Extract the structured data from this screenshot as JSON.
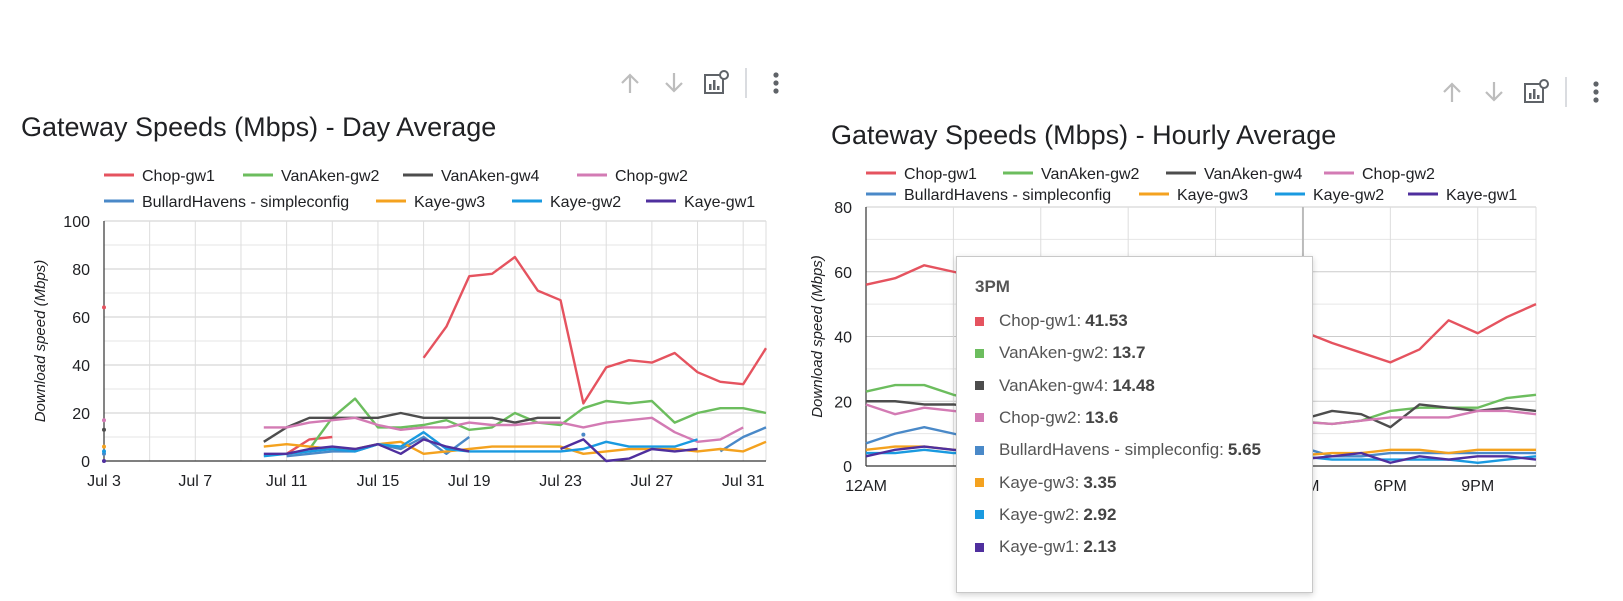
{
  "left_panel": {
    "title": "Gateway Speeds (Mbps) - Day Average",
    "toolbar": {
      "move_up_icon": "arrow-up-icon",
      "move_down_icon": "arrow-down-icon",
      "edit_chart_icon": "chart-settings-icon",
      "more_icon": "more-vert-icon"
    }
  },
  "right_panel": {
    "title": "Gateway Speeds (Mbps) - Hourly Average",
    "toolbar": {
      "move_up_icon": "arrow-up-icon",
      "move_down_icon": "arrow-down-icon",
      "edit_chart_icon": "chart-settings-icon",
      "more_icon": "more-vert-icon"
    },
    "tooltip": {
      "title": "3PM",
      "rows": [
        {
          "label": "Chop-gw1:",
          "value": "41.53",
          "color": "#e5535f"
        },
        {
          "label": "VanAken-gw2:",
          "value": "13.7",
          "color": "#6cbd5e"
        },
        {
          "label": "VanAken-gw4:",
          "value": "14.48",
          "color": "#4d4d4d"
        },
        {
          "label": "Chop-gw2:",
          "value": "13.6",
          "color": "#d37bb4"
        },
        {
          "label": "BullardHavens - simpleconfig:",
          "value": "5.65",
          "color": "#4a89c8"
        },
        {
          "label": "Kaye-gw3:",
          "value": "3.35",
          "color": "#f4a21f"
        },
        {
          "label": "Kaye-gw2:",
          "value": "2.92",
          "color": "#1a9ae0"
        },
        {
          "label": "Kaye-gw1:",
          "value": "2.13",
          "color": "#4f2f9e"
        }
      ]
    }
  },
  "chart_data": [
    {
      "type": "line",
      "title": "Gateway Speeds (Mbps) - Day Average",
      "xlabel": "",
      "ylabel": "Download speed (Mbps)",
      "ylim": [
        0,
        100
      ],
      "yticks": [
        0,
        20,
        40,
        60,
        80,
        100
      ],
      "x": [
        "Jul 3",
        "Jul 4",
        "Jul 5",
        "Jul 6",
        "Jul 7",
        "Jul 8",
        "Jul 9",
        "Jul 10",
        "Jul 11",
        "Jul 12",
        "Jul 13",
        "Jul 14",
        "Jul 15",
        "Jul 16",
        "Jul 17",
        "Jul 18",
        "Jul 19",
        "Jul 20",
        "Jul 21",
        "Jul 22",
        "Jul 23",
        "Jul 24",
        "Jul 25",
        "Jul 26",
        "Jul 27",
        "Jul 28",
        "Jul 29",
        "Jul 30",
        "Jul 31",
        "Aug 1"
      ],
      "xtick_labels": [
        "Jul 3",
        "Jul 7",
        "Jul 11",
        "Jul 15",
        "Jul 19",
        "Jul 23",
        "Jul 27",
        "Jul 31"
      ],
      "xtick_indices": [
        0,
        4,
        8,
        12,
        16,
        20,
        24,
        28
      ],
      "legend_position": "top",
      "grid": true,
      "series": [
        {
          "name": "Chop-gw1",
          "color": "#e5535f",
          "values": [
            64,
            null,
            null,
            null,
            null,
            null,
            null,
            null,
            3,
            9,
            10,
            null,
            null,
            null,
            43,
            56,
            77,
            78,
            85,
            71,
            67,
            24,
            39,
            42,
            41,
            45,
            37,
            33,
            32,
            47
          ]
        },
        {
          "name": "VanAken-gw2",
          "color": "#6cbd5e",
          "values": [
            null,
            null,
            null,
            null,
            null,
            null,
            null,
            null,
            null,
            5,
            18,
            26,
            14,
            14,
            15,
            17,
            13,
            14,
            20,
            16,
            15,
            22,
            25,
            24,
            25,
            16,
            20,
            22,
            22,
            20
          ]
        },
        {
          "name": "VanAken-gw4",
          "color": "#4d4d4d",
          "values": [
            13,
            null,
            null,
            null,
            null,
            null,
            null,
            8,
            14,
            18,
            18,
            18,
            18,
            20,
            18,
            18,
            18,
            18,
            16,
            18,
            18,
            null,
            null,
            null,
            null,
            null,
            null,
            null,
            null,
            null
          ]
        },
        {
          "name": "Chop-gw2",
          "color": "#d37bb4",
          "values": [
            17,
            null,
            null,
            null,
            null,
            null,
            null,
            14,
            14,
            16,
            17,
            18,
            15,
            13,
            14,
            14,
            16,
            15,
            15,
            16,
            16,
            14,
            16,
            17,
            18,
            12,
            8,
            9,
            14,
            null
          ]
        },
        {
          "name": "BullardHavens - simpleconfig",
          "color": "#4a89c8",
          "values": [
            3,
            null,
            null,
            null,
            null,
            null,
            null,
            null,
            2,
            3,
            4,
            4,
            7,
            5,
            10,
            3,
            10,
            null,
            null,
            null,
            null,
            11,
            null,
            null,
            null,
            null,
            null,
            4,
            10,
            14
          ]
        },
        {
          "name": "Kaye-gw3",
          "color": "#f4a21f",
          "values": [
            6,
            null,
            null,
            null,
            null,
            null,
            null,
            6,
            7,
            6,
            5,
            5,
            7,
            8,
            3,
            4,
            5,
            6,
            6,
            6,
            6,
            3,
            4,
            5,
            5,
            5,
            4,
            5,
            4,
            8
          ]
        },
        {
          "name": "Kaye-gw2",
          "color": "#1a9ae0",
          "values": [
            4,
            null,
            null,
            null,
            null,
            null,
            null,
            2,
            3,
            4,
            5,
            4,
            7,
            6,
            12,
            5,
            4,
            4,
            4,
            4,
            4,
            5,
            8,
            6,
            6,
            6,
            9,
            null,
            null,
            null
          ]
        },
        {
          "name": "Kaye-gw1",
          "color": "#4f2f9e",
          "values": [
            0,
            null,
            null,
            null,
            null,
            null,
            null,
            3,
            3,
            5,
            6,
            5,
            7,
            3,
            9,
            6,
            4,
            null,
            null,
            null,
            5,
            9,
            0,
            1,
            5,
            4,
            5,
            null,
            null,
            null
          ]
        }
      ]
    },
    {
      "type": "line",
      "title": "Gateway Speeds (Mbps) - Hourly Average",
      "xlabel": "",
      "ylabel": "Download speed (Mbps)",
      "ylim": [
        0,
        80
      ],
      "yticks": [
        0,
        20,
        40,
        60,
        80
      ],
      "x": [
        "12AM",
        "1AM",
        "2AM",
        "3AM",
        "4AM",
        "5AM",
        "6AM",
        "7AM",
        "8AM",
        "9AM",
        "10AM",
        "11AM",
        "12PM",
        "1PM",
        "2PM",
        "3PM",
        "4PM",
        "5PM",
        "6PM",
        "7PM",
        "8PM",
        "9PM",
        "10PM",
        "11PM"
      ],
      "xtick_labels": [
        "12AM",
        "3PM",
        "6PM",
        "9PM"
      ],
      "xtick_indices": [
        0,
        15,
        18,
        21
      ],
      "legend_position": "top",
      "grid": true,
      "series": [
        {
          "name": "Chop-gw1",
          "color": "#e5535f",
          "values": [
            56,
            58,
            62,
            60,
            58,
            55,
            50,
            48,
            45,
            42,
            40,
            38,
            37,
            36,
            36,
            41.53,
            38,
            35,
            32,
            36,
            45,
            41,
            46,
            50
          ]
        },
        {
          "name": "VanAken-gw2",
          "color": "#6cbd5e",
          "values": [
            23,
            25,
            25,
            22,
            20,
            18,
            16,
            15,
            14,
            14,
            14,
            14,
            14,
            14,
            14,
            13.7,
            13,
            14,
            17,
            18,
            18,
            18,
            21,
            22
          ]
        },
        {
          "name": "VanAken-gw4",
          "color": "#4d4d4d",
          "values": [
            20,
            20,
            19,
            19,
            18,
            18,
            18,
            18,
            18,
            18,
            18,
            18,
            18,
            18,
            18,
            14.48,
            17,
            16,
            12,
            19,
            18,
            17,
            18,
            17
          ]
        },
        {
          "name": "Chop-gw2",
          "color": "#d37bb4",
          "values": [
            19,
            16,
            18,
            17,
            16,
            15,
            15,
            14,
            14,
            14,
            14,
            14,
            14,
            14,
            14,
            13.6,
            13,
            14,
            15,
            15,
            15,
            17,
            17,
            16
          ]
        },
        {
          "name": "BullardHavens - simpleconfig",
          "color": "#4a89c8",
          "values": [
            7,
            10,
            12,
            10,
            8,
            7,
            6,
            6,
            5,
            5,
            5,
            5,
            5,
            5,
            6,
            5.65,
            3,
            3,
            4,
            4,
            4,
            4,
            4,
            4
          ]
        },
        {
          "name": "Kaye-gw3",
          "color": "#f4a21f",
          "values": [
            5,
            6,
            6,
            5,
            5,
            4,
            4,
            4,
            4,
            4,
            4,
            4,
            4,
            4,
            4,
            3.35,
            4,
            4,
            5,
            5,
            4,
            5,
            5,
            5
          ]
        },
        {
          "name": "Kaye-gw2",
          "color": "#1a9ae0",
          "values": [
            4,
            4,
            5,
            4,
            4,
            4,
            4,
            3,
            3,
            3,
            3,
            3,
            3,
            3,
            3,
            2.92,
            2,
            2,
            2,
            2,
            2,
            1,
            2,
            3
          ]
        },
        {
          "name": "Kaye-gw1",
          "color": "#4f2f9e",
          "values": [
            3,
            5,
            6,
            5,
            4,
            4,
            3,
            3,
            3,
            3,
            3,
            3,
            3,
            3,
            3,
            2.13,
            3,
            4,
            1,
            3,
            2,
            3,
            3,
            2
          ]
        }
      ],
      "highlight_index": 15
    }
  ]
}
